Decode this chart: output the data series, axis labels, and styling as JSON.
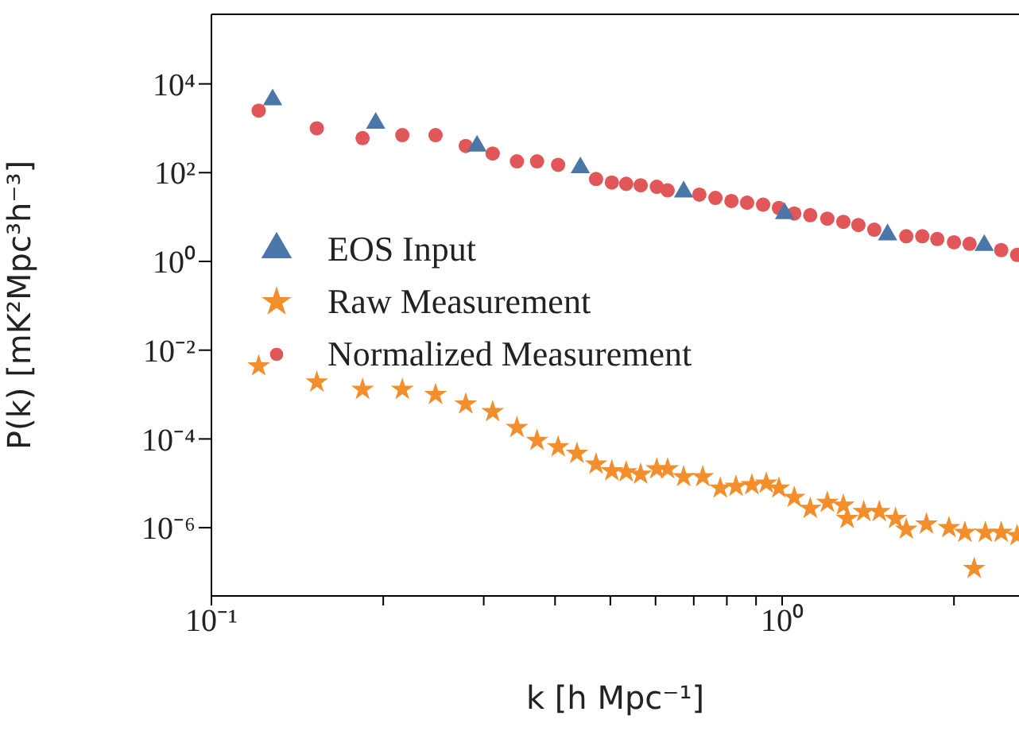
{
  "chart_data": {
    "type": "scatter",
    "xlabel": "k [h Mpc⁻¹]",
    "ylabel": "P(k) [mK²Mpc³h⁻³]",
    "log": "xy",
    "legend": "left",
    "xlim": [
      0.1,
      2.6
    ],
    "ylim": [
      2.9e-08,
      370000.0
    ],
    "xticks": [
      {
        "value": 0.1,
        "label": "10⁻¹"
      },
      {
        "value": 0.2,
        "label": null
      },
      {
        "value": 0.3,
        "label": null
      },
      {
        "value": 0.4,
        "label": null
      },
      {
        "value": 0.5,
        "label": null
      },
      {
        "value": 0.6,
        "label": null
      },
      {
        "value": 0.7,
        "label": null
      },
      {
        "value": 0.8,
        "label": null
      },
      {
        "value": 0.9,
        "label": null
      },
      {
        "value": 1,
        "label": "10⁰"
      },
      {
        "value": 2,
        "label": null
      }
    ],
    "yticks": [
      {
        "value": 1e-06,
        "label": "10⁻⁶"
      },
      {
        "value": 0.0001,
        "label": "10⁻⁴"
      },
      {
        "value": 0.01,
        "label": "10⁻²"
      },
      {
        "value": 1,
        "label": "10⁰"
      },
      {
        "value": 100,
        "label": "10²"
      },
      {
        "value": 10000,
        "label": "10⁴"
      }
    ],
    "series": [
      {
        "name": "EOS Input",
        "color": "#4a76a8",
        "marker": "triangle",
        "x": [
          0.128,
          0.194,
          0.292,
          0.443,
          0.672,
          1.01,
          1.53,
          2.26
        ],
        "values": [
          4400,
          1300,
          400,
          130,
          37,
          12,
          4,
          2.3
        ]
      },
      {
        "name": "Raw Measurement",
        "color": "#f28e2b",
        "marker": "star",
        "x": [
          0.121,
          0.153,
          0.184,
          0.216,
          0.247,
          0.279,
          0.311,
          0.343,
          0.372,
          0.405,
          0.437,
          0.472,
          0.503,
          0.533,
          0.565,
          0.603,
          0.63,
          0.672,
          0.726,
          0.779,
          0.83,
          0.885,
          0.938,
          0.987,
          1.05,
          1.12,
          1.2,
          1.28,
          1.3,
          1.39,
          1.48,
          1.58,
          1.65,
          1.79,
          1.96,
          2.09,
          2.17,
          2.27,
          2.42,
          2.58
        ],
        "values": [
          0.0044,
          0.0019,
          0.0013,
          0.0013,
          0.001,
          0.00061,
          0.00041,
          0.00018,
          9.2e-05,
          6.6e-05,
          4.7e-05,
          2.7e-05,
          1.9e-05,
          1.8e-05,
          1.6e-05,
          2.1e-05,
          2.1e-05,
          1.4e-05,
          1.4e-05,
          7.8e-06,
          8.5e-06,
          9.2e-06,
          1e-05,
          7.8e-06,
          4.8e-06,
          2.7e-06,
          3.7e-06,
          3.2e-06,
          1.6e-06,
          2.3e-06,
          2.3e-06,
          1.6e-06,
          9.2e-07,
          1.2e-06,
          1e-06,
          7.8e-07,
          1.2e-07,
          7.8e-07,
          7.8e-07,
          6.6e-07
        ]
      },
      {
        "name": "Normalized Measurement",
        "color": "#e15759",
        "marker": "circle",
        "x": [
          0.121,
          0.153,
          0.184,
          0.216,
          0.247,
          0.279,
          0.311,
          0.343,
          0.372,
          0.405,
          0.472,
          0.503,
          0.533,
          0.565,
          0.603,
          0.63,
          0.672,
          0.716,
          0.764,
          0.815,
          0.868,
          0.926,
          0.987,
          1.05,
          1.12,
          1.2,
          1.28,
          1.36,
          1.45,
          1.55,
          1.65,
          1.76,
          1.87,
          2.0,
          2.13,
          2.27,
          2.42,
          2.58
        ],
        "values": [
          2500,
          1000,
          600,
          700,
          700,
          400,
          270,
          180,
          180,
          150,
          72,
          60,
          56,
          52,
          48,
          40,
          null,
          32,
          27,
          23,
          21,
          19,
          16,
          12,
          11,
          9.2,
          7.8,
          6.6,
          5.2,
          null,
          3.7,
          3.7,
          3.2,
          2.7,
          2.5,
          null,
          1.8,
          1.4
        ]
      }
    ]
  }
}
